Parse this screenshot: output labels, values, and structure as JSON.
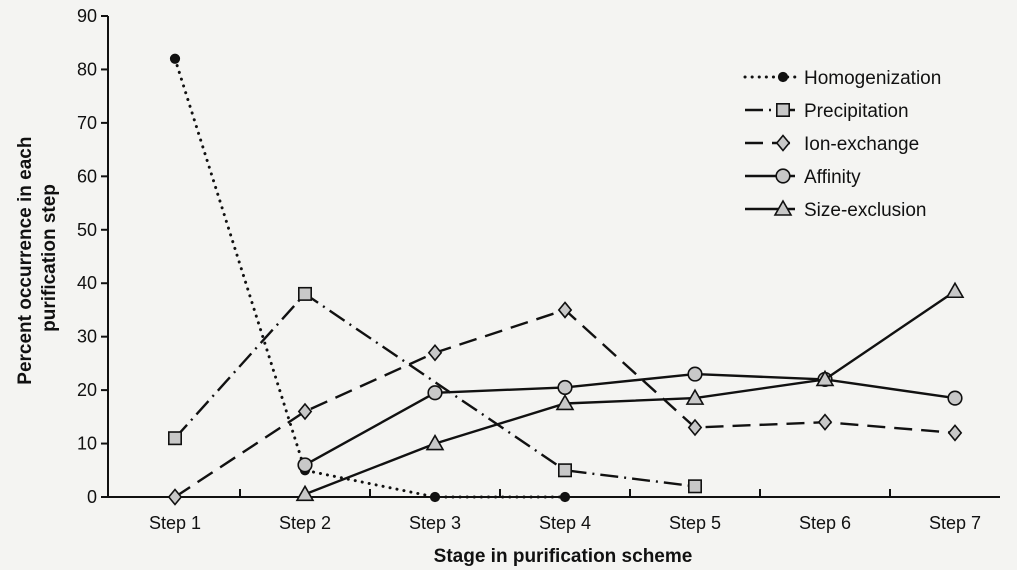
{
  "chart_data": {
    "type": "line",
    "title": "",
    "xlabel": "Stage in purification scheme",
    "ylabel": "Percent occurrence in each purification step",
    "ylabel_lines": [
      "Percent occurrence in each",
      "purification step"
    ],
    "categories": [
      "Step 1",
      "Step 2",
      "Step 3",
      "Step 4",
      "Step 5",
      "Step 6",
      "Step 7"
    ],
    "ylim": [
      0,
      90
    ],
    "yticks": [
      0,
      10,
      20,
      30,
      40,
      50,
      60,
      70,
      80,
      90
    ],
    "grid": false,
    "legend_position": "top-right",
    "series": [
      {
        "name": "Homogenization",
        "marker": "filled-circle",
        "line_style": "dotted",
        "values": [
          82,
          5,
          0,
          0,
          null,
          null,
          null
        ]
      },
      {
        "name": "Precipitation",
        "marker": "square",
        "line_style": "dash-dot",
        "values": [
          11,
          38,
          null,
          5,
          2,
          null,
          null
        ]
      },
      {
        "name": "Ion-exchange",
        "marker": "diamond",
        "line_style": "dashed",
        "values": [
          0,
          16,
          27,
          35,
          13,
          14,
          12
        ]
      },
      {
        "name": "Affinity",
        "marker": "circle",
        "line_style": "solid",
        "values": [
          null,
          6,
          19.5,
          20.5,
          23,
          22,
          18.5
        ]
      },
      {
        "name": "Size-exclusion",
        "marker": "triangle",
        "line_style": "solid",
        "values": [
          null,
          0.5,
          10,
          17.5,
          18.5,
          22,
          38.5
        ]
      }
    ]
  }
}
